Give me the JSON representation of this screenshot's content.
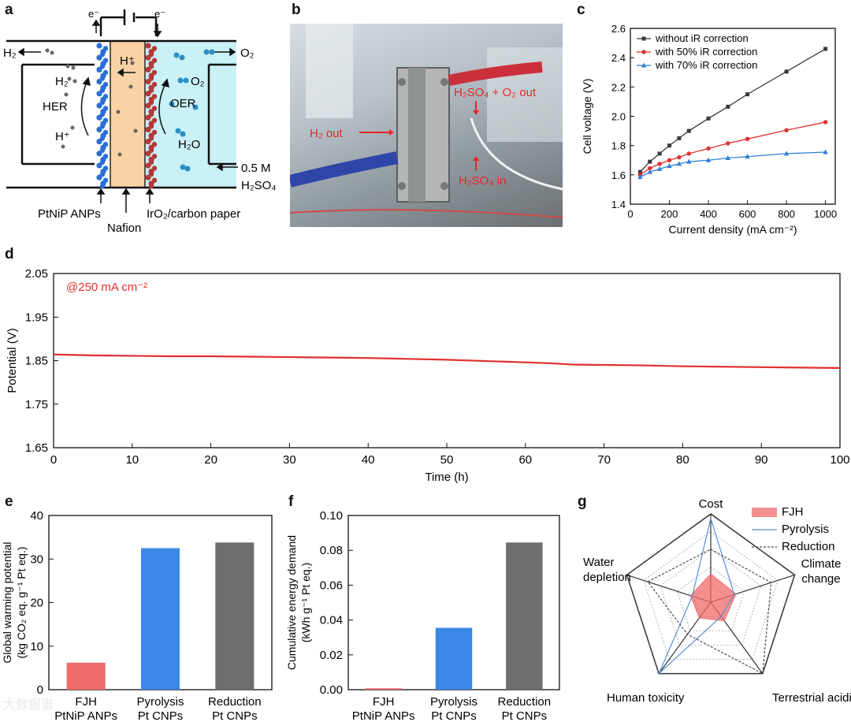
{
  "panel_letters": {
    "a": "a",
    "b": "b",
    "c": "c",
    "d": "d",
    "e": "e",
    "f": "f",
    "g": "g"
  },
  "panel_a": {
    "electron_left": "e⁻",
    "electron_right": "e⁻",
    "h2_out": "H₂",
    "o2_out": "O₂",
    "h2": "H₂",
    "h_plus_left": "H⁺",
    "h_plus_mid": "H⁺",
    "her": "HER",
    "oer": "OER",
    "o2": "O₂",
    "h2o": "H₂O",
    "electrolyte_conc": "0.5 M",
    "electrolyte_acid": "H₂SO₄",
    "cathode": "PtNiP ANPs",
    "membrane": "Nafion",
    "anode": "IrO₂/carbon paper",
    "colors": {
      "cathode": "#2a6fd6",
      "anode": "#b23a3a",
      "membrane": "#f9d3a5",
      "electrolyte": "#c9f1f6"
    }
  },
  "panel_b": {
    "h2_out": "H₂ out",
    "acid_o2_out": "H₂SO₄ + O₂ out",
    "acid_in": "H₂SO₄ in",
    "annotation_color": "#e8262b"
  },
  "chart_data": [
    {
      "panel": "c",
      "type": "line",
      "xlabel": "Current density (mA cm⁻²)",
      "ylabel": "Cell voltage (V)",
      "xlim": [
        0,
        1050
      ],
      "ylim": [
        1.4,
        2.6
      ],
      "xticks": [
        0,
        200,
        400,
        600,
        800,
        1000
      ],
      "yticks": [
        1.4,
        1.6,
        1.8,
        2.0,
        2.2,
        2.4,
        2.6
      ],
      "legend_position": "top-left",
      "series": [
        {
          "name": "without iR correction",
          "color": "#3a3a3a",
          "marker": "square",
          "x": [
            50,
            100,
            150,
            200,
            250,
            300,
            400,
            500,
            600,
            800,
            1000
          ],
          "y": [
            1.62,
            1.69,
            1.745,
            1.8,
            1.85,
            1.9,
            1.985,
            2.065,
            2.15,
            2.305,
            2.46
          ]
        },
        {
          "name": "with 50% iR correction",
          "color": "#e0302f",
          "marker": "circle",
          "x": [
            50,
            100,
            150,
            200,
            250,
            300,
            400,
            500,
            600,
            800,
            1000
          ],
          "y": [
            1.6,
            1.645,
            1.675,
            1.7,
            1.72,
            1.745,
            1.78,
            1.815,
            1.845,
            1.905,
            1.96
          ]
        },
        {
          "name": "with 70% iR correction",
          "color": "#2f7fd9",
          "marker": "triangle",
          "x": [
            50,
            100,
            150,
            200,
            250,
            300,
            400,
            500,
            600,
            800,
            1000
          ],
          "y": [
            1.585,
            1.62,
            1.64,
            1.66,
            1.675,
            1.69,
            1.7,
            1.715,
            1.725,
            1.745,
            1.755
          ]
        }
      ]
    },
    {
      "panel": "d",
      "type": "line",
      "xlabel": "Time (h)",
      "ylabel": "Potential (V)",
      "annotation": "@250 mA cm⁻²",
      "xlim": [
        0,
        100
      ],
      "ylim": [
        1.65,
        2.05
      ],
      "xticks": [
        0,
        10,
        20,
        30,
        40,
        50,
        60,
        70,
        80,
        90,
        100
      ],
      "yticks": [
        1.65,
        1.75,
        1.85,
        1.95,
        2.05
      ],
      "series": [
        {
          "color": "#e0302f",
          "x": [
            0,
            5,
            10,
            15,
            20,
            25,
            30,
            35,
            40,
            45,
            50,
            55,
            60,
            63,
            66,
            70,
            75,
            80,
            85,
            90,
            95,
            100
          ],
          "y": [
            1.864,
            1.862,
            1.861,
            1.86,
            1.86,
            1.859,
            1.858,
            1.857,
            1.856,
            1.854,
            1.852,
            1.849,
            1.846,
            1.844,
            1.841,
            1.84,
            1.839,
            1.837,
            1.836,
            1.835,
            1.834,
            1.833
          ]
        }
      ]
    },
    {
      "panel": "e",
      "type": "bar",
      "ylabel": "Global warming potential (kg CO₂ eq. g⁻¹ Pt eq.)",
      "categories": [
        "FJH\nPtNiP ANPs",
        "Pyrolysis\nPt CNPs",
        "Reduction\nPt CNPs"
      ],
      "values": [
        6.2,
        32.5,
        33.8
      ],
      "colors": [
        "#f06b6b",
        "#3a87e6",
        "#6e6e6e"
      ],
      "ylim": [
        0,
        40
      ],
      "yticks": [
        0,
        10,
        20,
        30,
        40
      ]
    },
    {
      "panel": "f",
      "type": "bar",
      "ylabel": "Cumulative energy demand (kWh g⁻¹ Pt eq.)",
      "categories": [
        "FJH\nPtNiP ANPs",
        "Pyrolysis\nPt CNPs",
        "Reduction\nPt CNPs"
      ],
      "values": [
        0.0008,
        0.0355,
        0.0845
      ],
      "colors": [
        "#f06b6b",
        "#3a87e6",
        "#6e6e6e"
      ],
      "ylim": [
        0,
        0.1
      ],
      "yticks": [
        0.0,
        0.02,
        0.04,
        0.06,
        0.08,
        0.1
      ]
    },
    {
      "panel": "g",
      "type": "radar",
      "axes": [
        "Cost",
        "Climate\nchange",
        "Terrestrial acidification",
        "Human toxicity",
        "Water\ndepletion"
      ],
      "legend_position": "top-right",
      "series": [
        {
          "name": "FJH",
          "color": "#f06b6b",
          "style": "filled",
          "values": [
            0.32,
            0.3,
            0.26,
            0.22,
            0.24
          ]
        },
        {
          "name": "Pyrolysis",
          "color": "#5b8fd6",
          "style": "solid",
          "values": [
            0.95,
            0.28,
            0.2,
            1.0,
            0.22
          ]
        },
        {
          "name": "Reduction",
          "color": "#4a4a4a",
          "style": "dashed",
          "values": [
            0.6,
            0.72,
            1.0,
            0.45,
            0.75
          ]
        }
      ]
    }
  ],
  "watermark": "大数据谱"
}
